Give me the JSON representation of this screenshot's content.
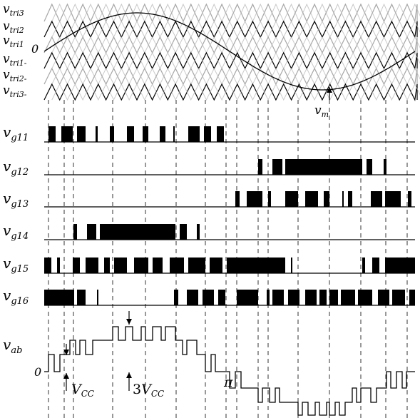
{
  "carrier_labels": [
    {
      "main": "v",
      "sub": "tri3"
    },
    {
      "main": "v",
      "sub": "tri2"
    },
    {
      "main": "v",
      "sub": "tri1"
    },
    {
      "main": "v",
      "sub": "tri1-"
    },
    {
      "main": "v",
      "sub": "tri2-"
    },
    {
      "main": "v",
      "sub": "tri3-"
    }
  ],
  "carrier_zero": "0",
  "reference_label": {
    "main": "v",
    "sub": "m"
  },
  "gate_signals": [
    {
      "main": "v",
      "sub": "g11"
    },
    {
      "main": "v",
      "sub": "g12"
    },
    {
      "main": "v",
      "sub": "g13"
    },
    {
      "main": "v",
      "sub": "g14"
    },
    {
      "main": "v",
      "sub": "g15"
    },
    {
      "main": "v",
      "sub": "g16"
    }
  ],
  "output": {
    "main": "v",
    "sub": "ab"
  },
  "output_zero": "0",
  "annotations": {
    "vcc": {
      "main": "V",
      "sub": "CC"
    },
    "three_vcc": {
      "pre": "3",
      "main": "V",
      "sub": "CC"
    },
    "pi": "π"
  },
  "colors": {
    "triangle_upper": "#999999",
    "triangle_lower": "#999999",
    "triangle_dark": "#000000",
    "pulse": "#000000",
    "guide": "#000000"
  }
}
